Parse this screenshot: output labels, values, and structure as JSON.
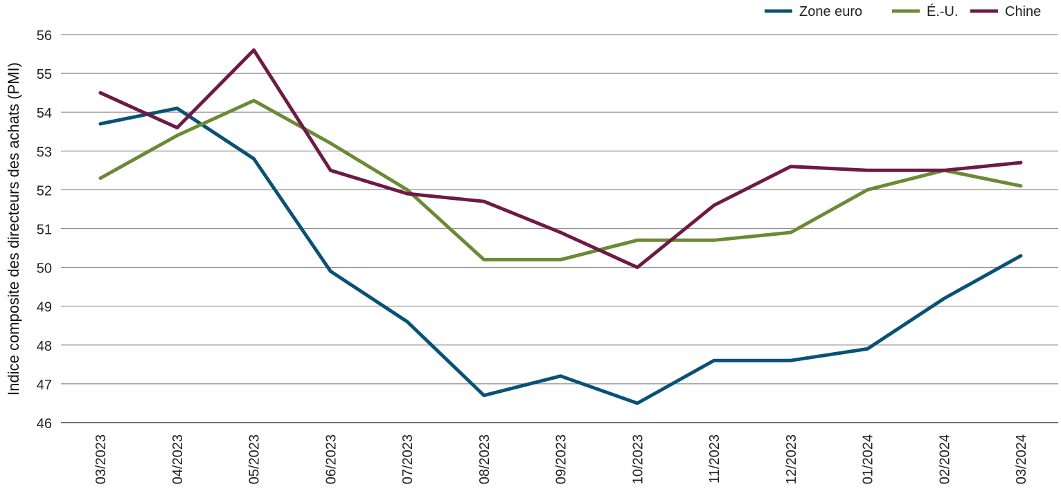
{
  "chart_data": {
    "type": "line",
    "title": "",
    "xlabel": "",
    "ylabel": "Indice composite des directeurs des achats (PMI)",
    "ylim": [
      46,
      56
    ],
    "yticks": [
      "46",
      "47",
      "48",
      "49",
      "50",
      "51",
      "52",
      "53",
      "54",
      "55",
      "56"
    ],
    "grid": true,
    "legend_position": "top-right",
    "categories": [
      "03/2023",
      "04/2023",
      "05/2023",
      "06/2023",
      "07/2023",
      "08/2023",
      "09/2023",
      "10/2023",
      "11/2023",
      "12/2023",
      "01/2024",
      "02/2024",
      "03/2024"
    ],
    "series": [
      {
        "name": "Zone euro",
        "color": "#0a5275",
        "values": [
          53.7,
          54.1,
          52.8,
          49.9,
          48.6,
          46.7,
          47.2,
          46.5,
          47.6,
          47.6,
          47.9,
          49.2,
          50.3
        ]
      },
      {
        "name": "É.-U.",
        "color": "#6b8a35",
        "values": [
          52.3,
          53.4,
          54.3,
          53.2,
          52.0,
          50.2,
          50.2,
          50.7,
          50.7,
          50.9,
          52.0,
          52.5,
          52.1
        ]
      },
      {
        "name": "Chine",
        "color": "#6e1a45",
        "values": [
          54.5,
          53.6,
          55.6,
          52.5,
          51.9,
          51.7,
          50.9,
          50.0,
          51.6,
          52.6,
          52.5,
          52.5,
          52.7
        ]
      }
    ]
  }
}
